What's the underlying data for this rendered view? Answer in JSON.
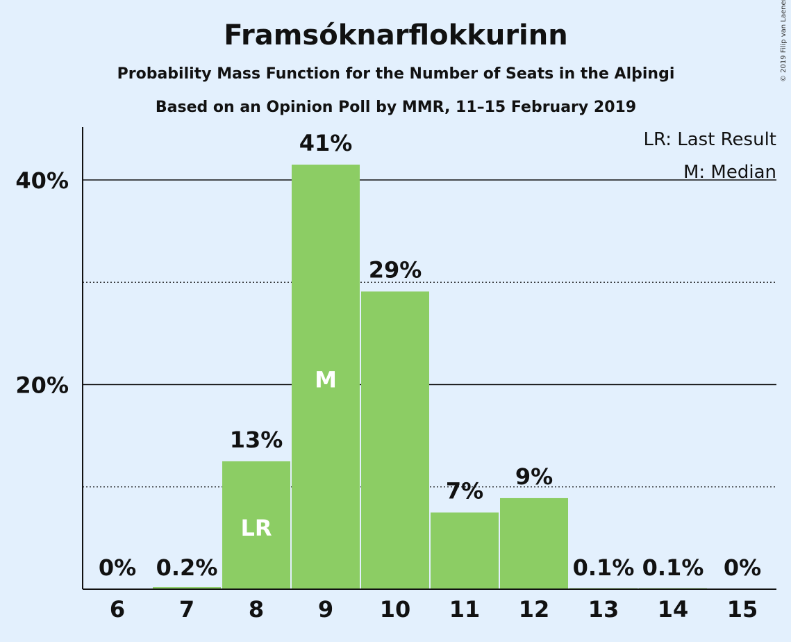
{
  "chart_data": {
    "type": "bar",
    "title": "Framsóknarflokkurinn",
    "subtitle": "Probability Mass Function for the Number of Seats in the Alþingi",
    "subtitle2": "Based on an Opinion Poll by MMR, 11–15 February 2019",
    "categories": [
      "6",
      "7",
      "8",
      "9",
      "10",
      "11",
      "12",
      "13",
      "14",
      "15"
    ],
    "values": [
      0,
      0.2,
      12.5,
      41.5,
      29.1,
      7.5,
      8.9,
      0.1,
      0.1,
      0
    ],
    "value_labels": [
      "0%",
      "0.2%",
      "13%",
      "41%",
      "29%",
      "7%",
      "9%",
      "0.1%",
      "0.1%",
      "0%"
    ],
    "bar_markers": {
      "8": "LR",
      "9": "M"
    },
    "y_ticks": [
      20,
      40
    ],
    "y_tick_labels": [
      "20%",
      "40%"
    ],
    "y_minor_ticks": [
      10,
      30
    ],
    "ylim": [
      0,
      45
    ],
    "legend": [
      "LR: Last Result",
      "M: Median"
    ],
    "legend_position": "top-right",
    "copyright": "© 2019 Filip van Laenen",
    "colors": {
      "bar": "#8ccd64",
      "background": "#e3f0fd",
      "text": "#111111",
      "marker_text": "#ffffff"
    }
  }
}
